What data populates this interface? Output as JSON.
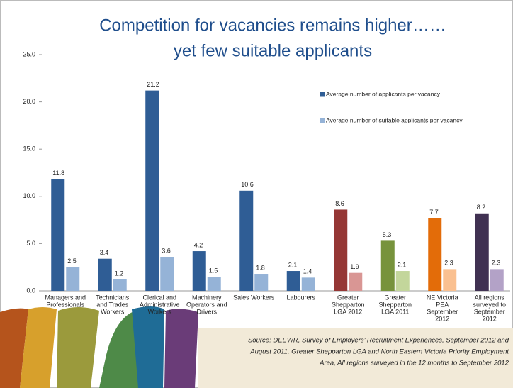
{
  "chart_data": {
    "type": "bar",
    "title": [
      "Competition for vacancies remains higher……",
      "yet few suitable applicants"
    ],
    "categories": [
      [
        "Managers and",
        "Professionals"
      ],
      [
        "Technicians",
        "and Trades",
        "Workers"
      ],
      [
        "Clerical and",
        "Administrative",
        "Workers"
      ],
      [
        "Machinery",
        "Operators and",
        "Drivers"
      ],
      [
        "Sales Workers"
      ],
      [
        "Labourers"
      ],
      [
        "Greater",
        "Shepparton",
        "LGA 2012"
      ],
      [
        "Greater",
        "Shepparton",
        "LGA 2011"
      ],
      [
        "NE Victoria",
        "PEA",
        "September",
        "2012"
      ],
      [
        "All regions",
        "surveyed to",
        "September",
        "2012"
      ]
    ],
    "series": [
      {
        "name": "Average number of applicants per vacancy",
        "color": "#2f5d95",
        "point_colors": [
          "#2f5d95",
          "#2f5d95",
          "#2f5d95",
          "#2f5d95",
          "#2f5d95",
          "#2f5d95",
          "#953735",
          "#77933c",
          "#e36c09",
          "#403152"
        ],
        "values": [
          11.8,
          3.4,
          21.2,
          4.2,
          10.6,
          2.1,
          8.6,
          5.3,
          7.7,
          8.2
        ]
      },
      {
        "name": "Average number of suitable applicants per vacancy",
        "color": "#95b3d7",
        "point_colors": [
          "#95b3d7",
          "#95b3d7",
          "#95b3d7",
          "#95b3d7",
          "#95b3d7",
          "#95b3d7",
          "#d99694",
          "#c3d69b",
          "#fac090",
          "#b3a2c7"
        ],
        "values": [
          2.5,
          1.2,
          3.6,
          1.5,
          1.8,
          1.4,
          1.9,
          2.1,
          2.3,
          2.3
        ]
      }
    ],
    "ylim": [
      0,
      25
    ],
    "yticks": [
      {
        "value": 0,
        "label": "0.0"
      },
      {
        "value": 5,
        "label": "5.0"
      },
      {
        "value": 10,
        "label": "10.0"
      },
      {
        "value": 15,
        "label": "15.0"
      },
      {
        "value": 20,
        "label": "20.0"
      },
      {
        "value": 25,
        "label": "25.0"
      }
    ],
    "grid": false,
    "source": [
      "Source: DEEWR, Survey of Employers’ Recruitment Experiences, September 2012 and",
      "August 2011, Greater Shepparton LGA and  North Eastern Victoria Priority Employment",
      "Area, All regions surveyed in the 12 months to September 2012"
    ]
  }
}
